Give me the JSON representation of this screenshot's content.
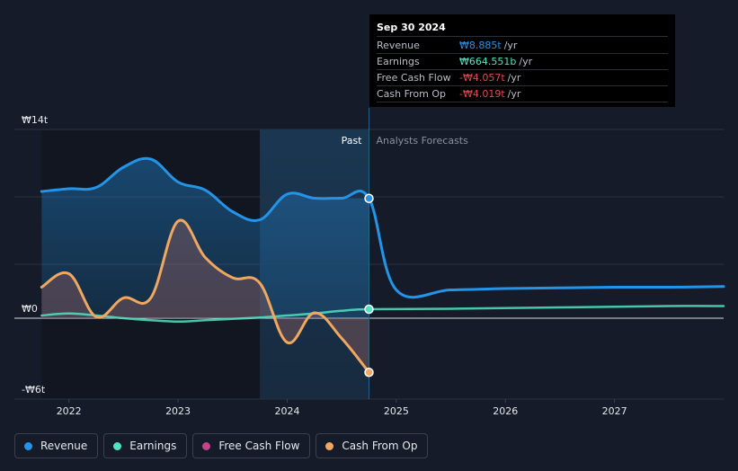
{
  "chart_data": {
    "type": "line",
    "currency_unit": "trillion KRW",
    "y_axis": {
      "labels": [
        "₩14t",
        "₩0",
        "-₩6t"
      ],
      "ylim": [
        -6,
        14
      ]
    },
    "x_axis": {
      "labels": [
        "2022",
        "2023",
        "2024",
        "2025",
        "2026",
        "2027"
      ],
      "xlim": [
        2021.5,
        2028.0
      ]
    },
    "regions": {
      "past_label": "Past",
      "forecast_label": "Analysts Forecasts",
      "highlight_start": 2023.75,
      "split_at": 2024.75
    },
    "series": [
      {
        "name": "Revenue",
        "color": "#2394e8",
        "fill": true,
        "x": [
          2021.75,
          2022.0,
          2022.25,
          2022.5,
          2022.75,
          2023.0,
          2023.25,
          2023.5,
          2023.75,
          2024.0,
          2024.25,
          2024.5,
          2024.75,
          2025.0,
          2025.5,
          2026.0,
          2026.5,
          2027.0,
          2027.5,
          2028.0
        ],
        "y": [
          9.4,
          9.6,
          9.7,
          11.2,
          11.8,
          10.1,
          9.5,
          7.9,
          7.3,
          9.2,
          8.9,
          8.9,
          8.885,
          2.1,
          2.1,
          2.2,
          2.25,
          2.3,
          2.3,
          2.35
        ]
      },
      {
        "name": "Earnings",
        "color": "#52e3c2",
        "fill": false,
        "x": [
          2021.75,
          2022.0,
          2022.25,
          2022.5,
          2022.75,
          2023.0,
          2023.25,
          2023.5,
          2023.75,
          2024.0,
          2024.25,
          2024.5,
          2024.75,
          2025.5,
          2026.5,
          2027.5,
          2028.0
        ],
        "y": [
          0.2,
          0.35,
          0.2,
          0.0,
          -0.15,
          -0.25,
          -0.15,
          -0.05,
          0.05,
          0.2,
          0.35,
          0.55,
          0.6646,
          0.7,
          0.8,
          0.9,
          0.9
        ]
      },
      {
        "name": "Free Cash Flow",
        "color": "#c2448a",
        "fill": true,
        "x": [],
        "y": []
      },
      {
        "name": "Cash From Op",
        "color": "#f0a860",
        "fill": true,
        "x": [
          2021.75,
          2022.0,
          2022.25,
          2022.5,
          2022.75,
          2023.0,
          2023.25,
          2023.5,
          2023.75,
          2024.0,
          2024.25,
          2024.5,
          2024.75
        ],
        "y": [
          2.3,
          3.3,
          0.1,
          1.5,
          1.5,
          7.2,
          4.5,
          3.0,
          2.6,
          -1.8,
          0.4,
          -1.5,
          -4.019
        ]
      }
    ],
    "tooltip": {
      "date": "Sep 30 2024",
      "rows": [
        {
          "label": "Revenue",
          "value": "₩8.885t",
          "unit": "/yr",
          "color": "#2394e8"
        },
        {
          "label": "Earnings",
          "value": "₩664.551b",
          "unit": "/yr",
          "color": "#52e3c2"
        },
        {
          "label": "Free Cash Flow",
          "value": "-₩4.057t",
          "unit": "/yr",
          "color": "#e5484d"
        },
        {
          "label": "Cash From Op",
          "value": "-₩4.019t",
          "unit": "/yr",
          "color": "#e5484d"
        }
      ]
    },
    "legend": [
      {
        "label": "Revenue",
        "color": "#2394e8"
      },
      {
        "label": "Earnings",
        "color": "#52e3c2"
      },
      {
        "label": "Free Cash Flow",
        "color": "#c2448a"
      },
      {
        "label": "Cash From Op",
        "color": "#f0a860"
      }
    ]
  }
}
